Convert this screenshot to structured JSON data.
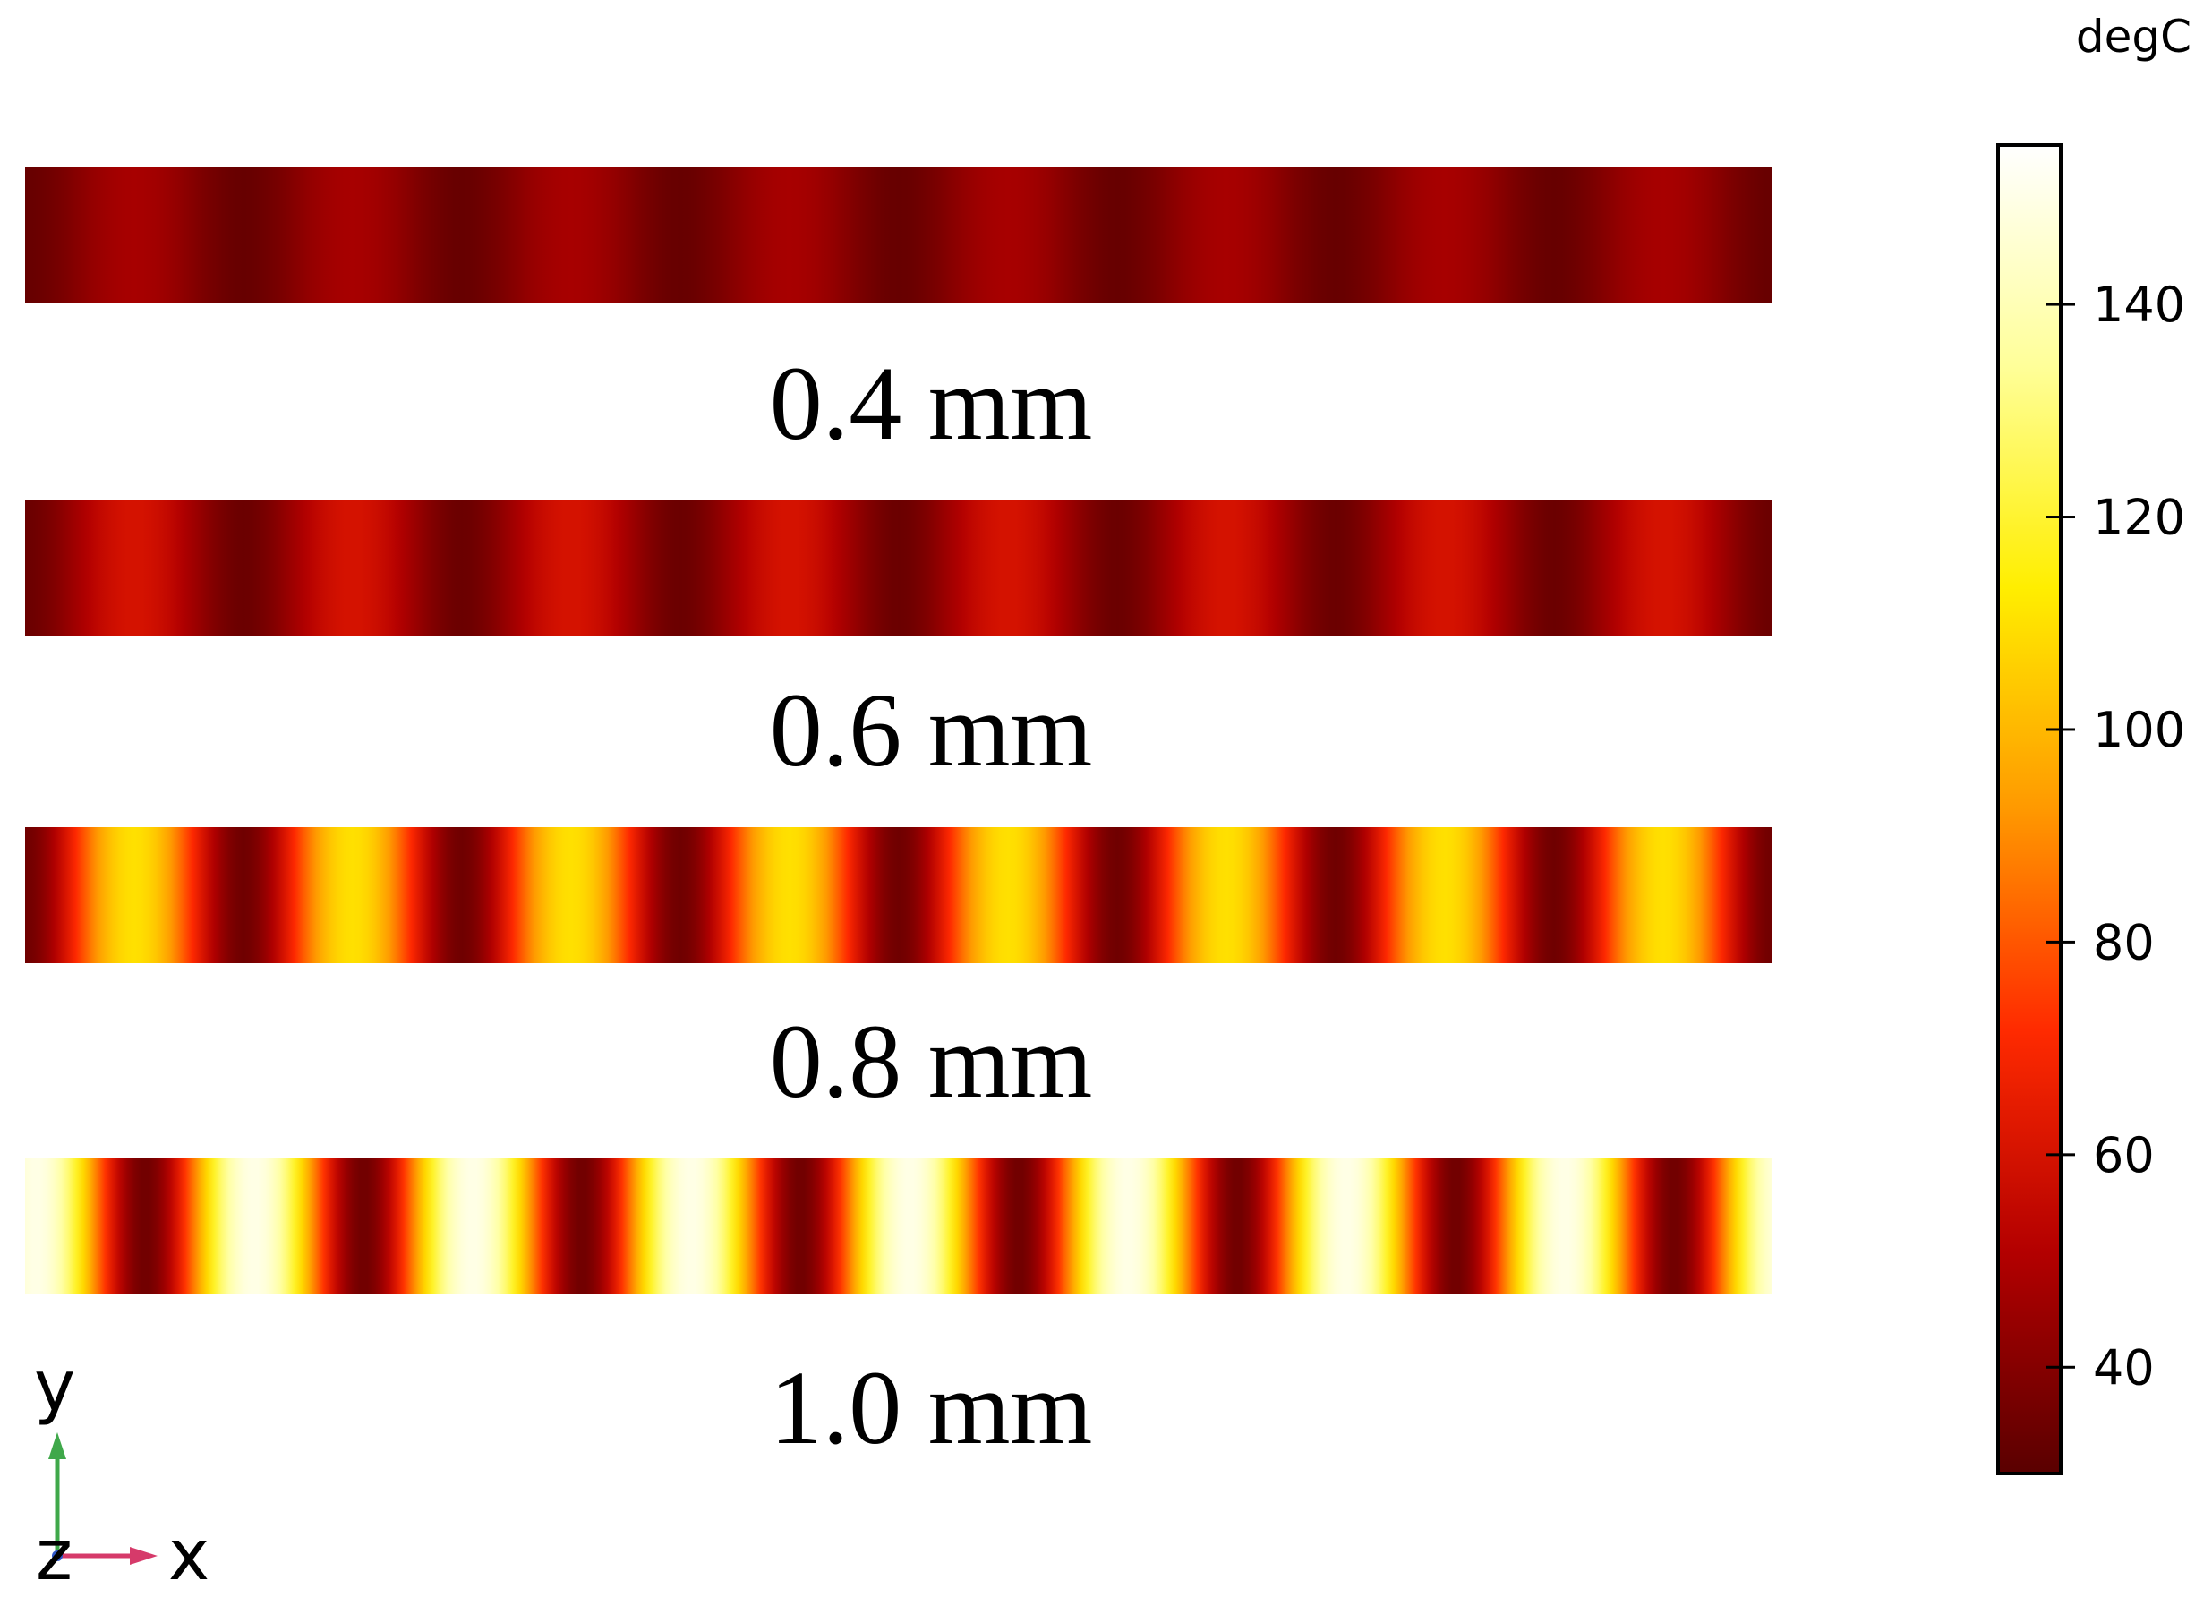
{
  "chart_data": {
    "type": "heatmap",
    "title": "",
    "field": "temperature",
    "colormap": "heat",
    "colorbar": {
      "unit_label": "degC",
      "min": 30,
      "max": 155,
      "ticks": [
        40,
        60,
        80,
        100,
        120,
        140
      ],
      "tick_labels": [
        "40",
        "60",
        "80",
        "100",
        "120",
        "140"
      ],
      "colors": [
        "#5a0000",
        "#b30000",
        "#ff2a00",
        "#ff9900",
        "#ffee00",
        "#ffff99",
        "#ffffff"
      ]
    },
    "series": [
      {
        "name": "0.4 mm",
        "peaks": 8,
        "tmin": 33,
        "tmax": 48
      },
      {
        "name": "0.6 mm",
        "peaks": 8,
        "tmin": 34,
        "tmax": 60
      },
      {
        "name": "0.8 mm",
        "peaks": 8,
        "tmin": 35,
        "tmax": 110
      },
      {
        "name": "1.0 mm",
        "peaks": 8,
        "tmin": 35,
        "tmax": 150
      }
    ],
    "axes_triad": {
      "up": "y",
      "right": "x",
      "out": "z"
    }
  }
}
